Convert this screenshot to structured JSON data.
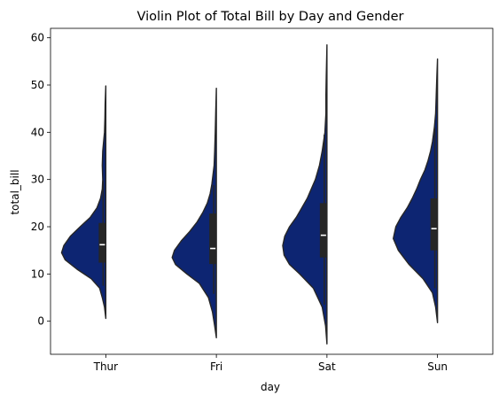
{
  "chart_data": {
    "type": "violin",
    "title": "Violin Plot of Total Bill by Day and Gender",
    "xlabel": "day",
    "ylabel": "total_bill",
    "categories": [
      "Thur",
      "Fri",
      "Sat",
      "Sun"
    ],
    "ylim": [
      -7,
      62
    ],
    "yticks": [
      0,
      10,
      20,
      30,
      40,
      50,
      60
    ],
    "split": true,
    "grid": false,
    "fill_color": "#0d2572",
    "edge_color": "#262626",
    "box_color": "#262626",
    "median_color": "#ffffff",
    "violins": [
      {
        "category": "Thur",
        "density": [
          [
            0.6,
            0.0
          ],
          [
            3,
            0.03
          ],
          [
            5,
            0.08
          ],
          [
            7,
            0.14
          ],
          [
            9,
            0.33
          ],
          [
            11,
            0.65
          ],
          [
            13,
            0.92
          ],
          [
            14.5,
            1.0
          ],
          [
            16,
            0.95
          ],
          [
            18,
            0.8
          ],
          [
            20,
            0.58
          ],
          [
            22,
            0.35
          ],
          [
            24,
            0.2
          ],
          [
            26,
            0.12
          ],
          [
            28,
            0.08
          ],
          [
            30,
            0.07
          ],
          [
            33,
            0.08
          ],
          [
            36,
            0.07
          ],
          [
            38,
            0.05
          ],
          [
            40,
            0.03
          ],
          [
            43,
            0.02
          ],
          [
            46,
            0.015
          ],
          [
            49.8,
            0.0
          ]
        ],
        "box": {
          "q1": 12.4,
          "q3": 20.8,
          "whisker_low": 7.5,
          "whisker_high": 29.8,
          "median": 16.2
        }
      },
      {
        "category": "Fri",
        "density": [
          [
            -3.5,
            0.0
          ],
          [
            -1,
            0.03
          ],
          [
            2,
            0.07
          ],
          [
            5,
            0.14
          ],
          [
            8,
            0.3
          ],
          [
            10,
            0.52
          ],
          [
            12,
            0.72
          ],
          [
            13.5,
            0.78
          ],
          [
            15,
            0.74
          ],
          [
            17,
            0.62
          ],
          [
            19,
            0.47
          ],
          [
            21,
            0.34
          ],
          [
            23,
            0.24
          ],
          [
            25,
            0.16
          ],
          [
            27,
            0.11
          ],
          [
            29,
            0.08
          ],
          [
            31,
            0.06
          ],
          [
            33,
            0.04
          ],
          [
            36,
            0.03
          ],
          [
            40,
            0.02
          ],
          [
            45,
            0.01
          ],
          [
            49.3,
            0.0
          ]
        ],
        "box": {
          "q1": 12.1,
          "q3": 22.8,
          "whisker_low": 5.8,
          "whisker_high": 28.8,
          "median": 15.4
        }
      },
      {
        "category": "Sat",
        "density": [
          [
            -4.8,
            0.0
          ],
          [
            -1,
            0.02
          ],
          [
            3,
            0.07
          ],
          [
            7,
            0.2
          ],
          [
            10,
            0.4
          ],
          [
            12,
            0.55
          ],
          [
            14,
            0.63
          ],
          [
            16,
            0.65
          ],
          [
            18,
            0.62
          ],
          [
            20,
            0.55
          ],
          [
            22,
            0.45
          ],
          [
            24,
            0.37
          ],
          [
            26,
            0.29
          ],
          [
            28,
            0.23
          ],
          [
            30,
            0.17
          ],
          [
            33,
            0.11
          ],
          [
            36,
            0.07
          ],
          [
            40,
            0.03
          ],
          [
            44,
            0.015
          ],
          [
            48,
            0.015
          ],
          [
            52,
            0.01
          ],
          [
            58.5,
            0.0
          ]
        ],
        "box": {
          "q1": 13.5,
          "q3": 25.0,
          "whisker_low": 3.5,
          "whisker_high": 39.5,
          "median": 18.2
        }
      },
      {
        "category": "Sun",
        "density": [
          [
            -0.3,
            0.0
          ],
          [
            3,
            0.03
          ],
          [
            6,
            0.08
          ],
          [
            9,
            0.23
          ],
          [
            12,
            0.45
          ],
          [
            15,
            0.62
          ],
          [
            17.5,
            0.7
          ],
          [
            20,
            0.66
          ],
          [
            22,
            0.58
          ],
          [
            24,
            0.48
          ],
          [
            26,
            0.4
          ],
          [
            28,
            0.33
          ],
          [
            30,
            0.27
          ],
          [
            32,
            0.2
          ],
          [
            34,
            0.15
          ],
          [
            36,
            0.11
          ],
          [
            38,
            0.08
          ],
          [
            41,
            0.05
          ],
          [
            44,
            0.03
          ],
          [
            48,
            0.02
          ],
          [
            52,
            0.01
          ],
          [
            55.5,
            0.0
          ]
        ],
        "box": {
          "q1": 15.0,
          "q3": 26.0,
          "whisker_low": 7.0,
          "whisker_high": 41.0,
          "median": 19.6
        }
      }
    ]
  }
}
